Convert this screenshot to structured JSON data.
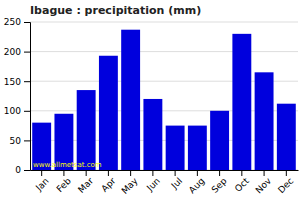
{
  "chart_data": {
    "type": "bar",
    "title": "Ibague : precipitation (mm)",
    "categories": [
      "Jan",
      "Feb",
      "Mar",
      "Apr",
      "May",
      "Jun",
      "Jul",
      "Aug",
      "Sep",
      "Oct",
      "Nov",
      "Dec"
    ],
    "values": [
      80,
      95,
      135,
      193,
      237,
      120,
      75,
      75,
      100,
      230,
      165,
      112
    ],
    "color": "#0000dd",
    "ylim": [
      0,
      250
    ],
    "yticks": [
      0,
      50,
      100,
      150,
      200,
      250
    ],
    "grid": true,
    "annotations": [
      "www.allmetsat.com"
    ]
  }
}
